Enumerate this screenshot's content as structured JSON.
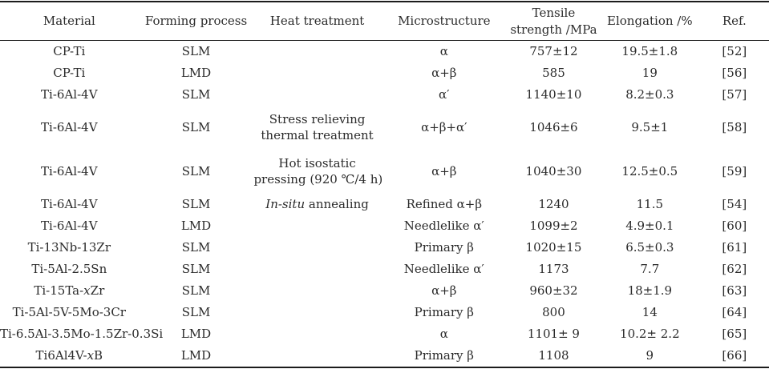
{
  "table": {
    "columns": [
      "Material",
      "Forming process",
      "Heat treatment",
      "Microstructure",
      "Tensile\nstrength /MPa",
      "Elongation /%",
      "Ref."
    ],
    "rows": [
      [
        "CP-Ti",
        "SLM",
        "",
        "α",
        "757±12",
        "19.5±1.8",
        "[52]"
      ],
      [
        "CP-Ti",
        "LMD",
        "",
        "α+β",
        "585",
        "19",
        "[56]"
      ],
      [
        "Ti-6Al-4V",
        "SLM",
        "",
        "α′",
        "1140±10",
        "8.2±0.3",
        "[57]"
      ],
      [
        "Ti-6Al-4V",
        "SLM",
        "Stress relieving\nthermal treatment",
        "α+β+α′",
        "1046±6",
        "9.5±1",
        "[58]"
      ],
      [
        "Ti-6Al-4V",
        "SLM",
        "Hot isostatic\npressing (920 ℃/4 h)",
        "α+β",
        "1040±30",
        "12.5±0.5",
        "[59]"
      ],
      [
        "Ti-6Al-4V",
        "SLM",
        "*In-situ* annealing",
        "Refined α+β",
        "1240",
        "11.5",
        "[54]"
      ],
      [
        "Ti-6Al-4V",
        "LMD",
        "",
        "Needlelike α′",
        "1099±2",
        "4.9±0.1",
        "[60]"
      ],
      [
        "Ti-13Nb-13Zr",
        "SLM",
        "",
        "Primary β",
        "1020±15",
        "6.5±0.3",
        "[61]"
      ],
      [
        "Ti-5Al-2.5Sn",
        "SLM",
        "",
        "Needlelike α′",
        "1173",
        "7.7",
        "[62]"
      ],
      [
        "Ti-15Ta-*x*Zr",
        "SLM",
        "",
        "α+β",
        "960±32",
        "18±1.9",
        "[63]"
      ],
      [
        "Ti-5Al-5V-5Mo-3Cr",
        "SLM",
        "",
        "Primary β",
        "800",
        "14",
        "[64]"
      ],
      [
        "Ti-6.5Al-3.5Mo-1.5Zr-0.3Si",
        "LMD",
        "",
        "α",
        "1101± 9",
        "10.2± 2.2",
        "[65]"
      ],
      [
        "Ti6Al4V-*x*B",
        "LMD",
        "",
        "Primary β",
        "1108",
        "9",
        "[66]"
      ]
    ]
  }
}
